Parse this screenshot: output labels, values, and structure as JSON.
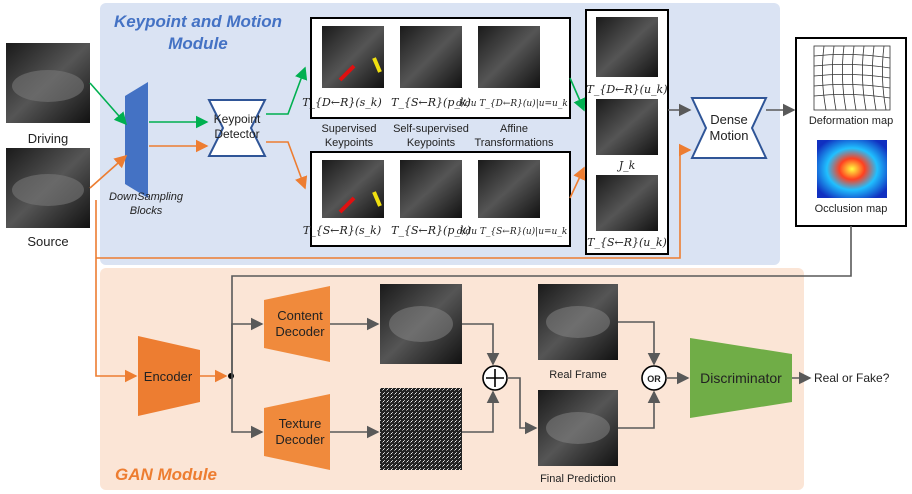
{
  "modules": {
    "keypoint_motion": {
      "title_line1": "Keypoint and Motion",
      "title_line2": "Module",
      "color": "#4472C4",
      "bg": "#DAE3F3"
    },
    "gan": {
      "title": "GAN Module",
      "color": "#ED7D31",
      "bg": "#FBE5D6"
    }
  },
  "inputs": {
    "driving": "Driving",
    "source": "Source"
  },
  "downsampling": {
    "line1": "DownSampling",
    "line2": "Blocks"
  },
  "keypoint_detector": {
    "line1": "Keypoint",
    "line2": "Detector"
  },
  "dense_motion": {
    "line1": "Dense",
    "line2": "Motion"
  },
  "column_labels": [
    {
      "line1": "Supervised",
      "line2": "Keypoints"
    },
    {
      "line1": "Self-supervised",
      "line2": "Keypoints"
    },
    {
      "line1": "Affine",
      "line2": "Transformations"
    }
  ],
  "top_row_formulas": [
    "T_{D←R}(s_k)",
    "T_{S←R}(p_k)",
    "d/du T_{D←R}(u)|u=u_k"
  ],
  "bottom_row_formulas": [
    "T_{S←R}(s_k)",
    "T_{S←R}(p_k)",
    "d/du T_{S←R}(u)|u=u_k"
  ],
  "stack_formulas": [
    "T_{D←R}(u_k)",
    "J_k",
    "T_{S←R}(u_k)"
  ],
  "maps": {
    "deformation": "Deformation map",
    "occlusion": "Occlusion map"
  },
  "encoder": "Encoder",
  "content_decoder": {
    "line1": "Content",
    "line2": "Decoder"
  },
  "texture_decoder": {
    "line1": "Texture",
    "line2": "Decoder"
  },
  "real_frame": "Real Frame",
  "final_prediction": "Final Prediction",
  "or_label": "OR",
  "discriminator": "Discriminator",
  "output": "Real or Fake?",
  "colors": {
    "green_arrow": "#00B050",
    "orange_arrow": "#ED7D31",
    "gray_arrow": "#595959",
    "decoder": "#F08A3C",
    "discriminator": "#70AD47"
  }
}
